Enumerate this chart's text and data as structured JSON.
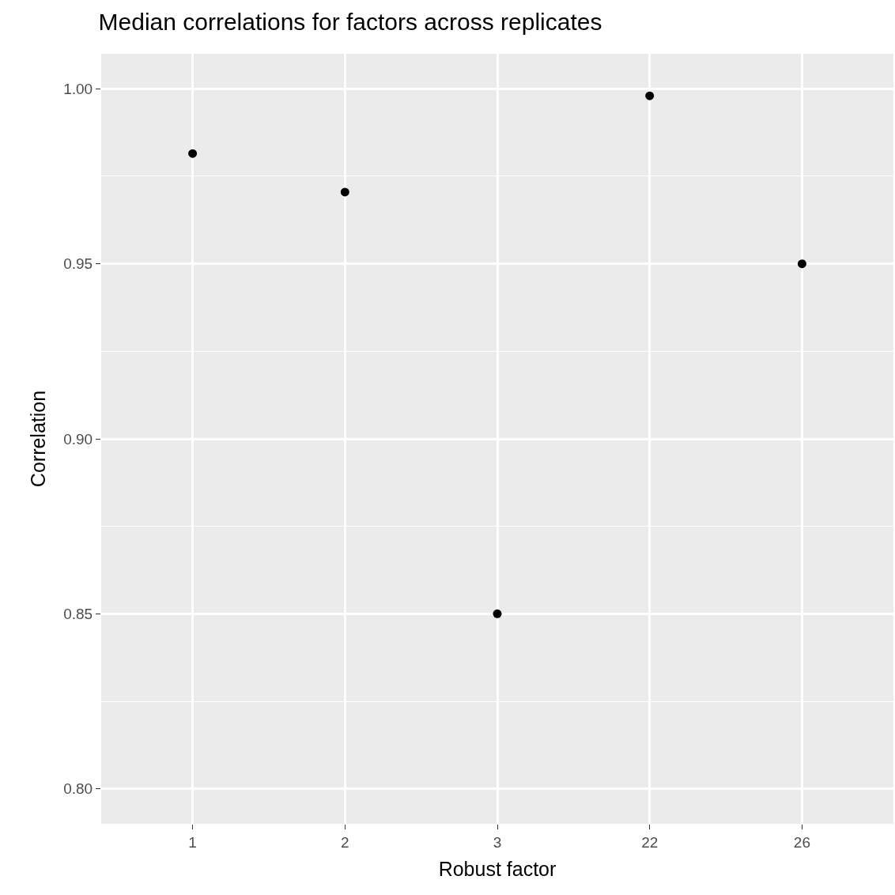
{
  "chart_data": {
    "type": "scatter",
    "title": "Median correlations for factors across replicates",
    "xlabel": "Robust factor",
    "ylabel": "Correlation",
    "categories": [
      "1",
      "2",
      "3",
      "22",
      "26"
    ],
    "values": [
      0.9815,
      0.9705,
      0.85,
      0.998,
      0.95
    ],
    "color": "#000000",
    "marker": "circle",
    "ylim": [
      0.79,
      1.01
    ],
    "yticks": [
      {
        "value": 0.8,
        "label": "0.80"
      },
      {
        "value": 0.85,
        "label": "0.85"
      },
      {
        "value": 0.9,
        "label": "0.90"
      },
      {
        "value": 0.95,
        "label": "0.95"
      },
      {
        "value": 1.0,
        "label": "1.00"
      }
    ],
    "grid": true,
    "legend": false
  }
}
